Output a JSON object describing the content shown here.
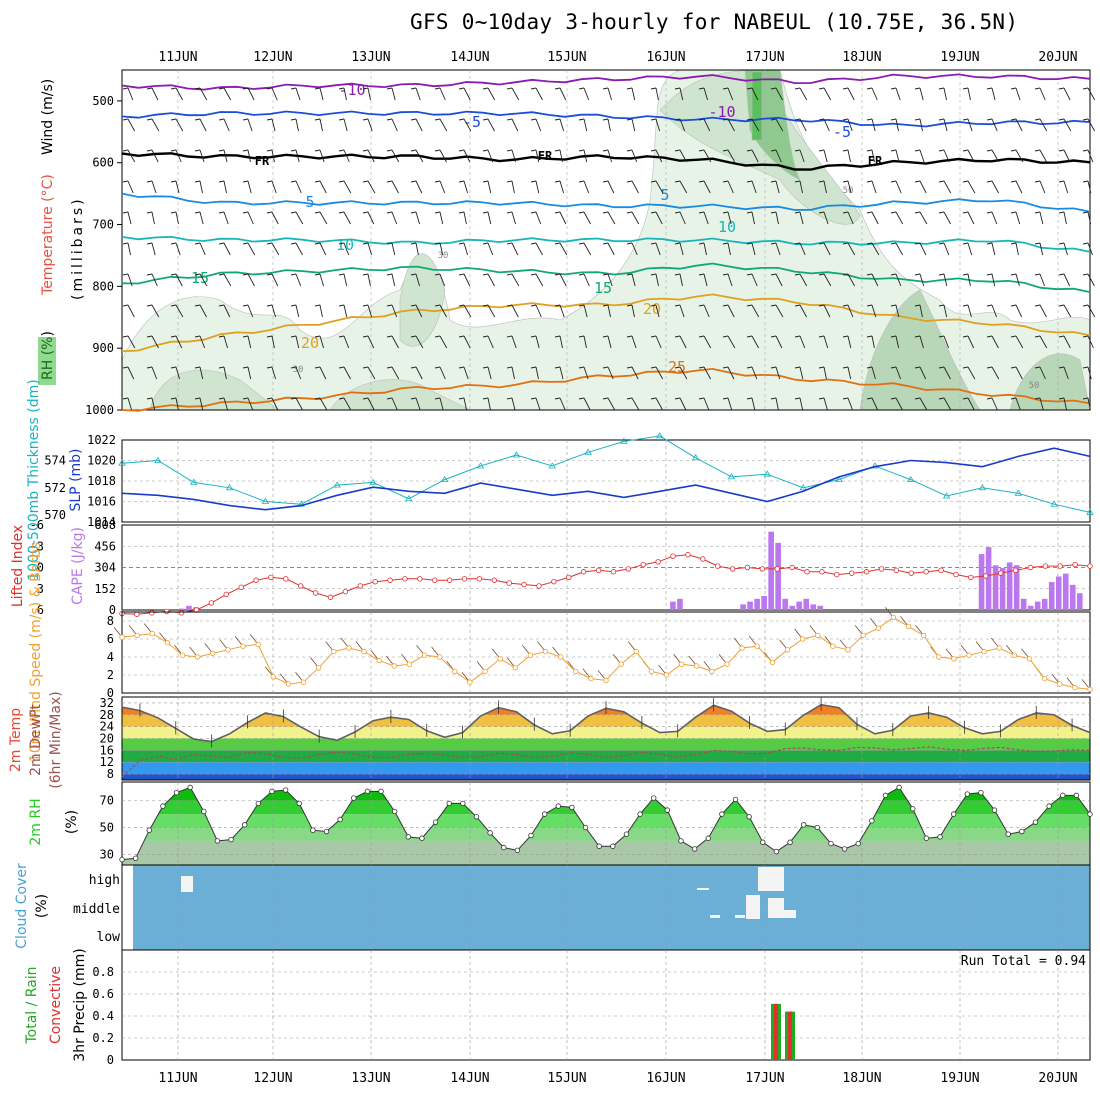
{
  "title": "GFS 0~10day 3-hourly for NABEUL (10.75E, 36.5N)",
  "colors": {
    "grid": "#999999",
    "slp": "#1a3bc8",
    "thick": "#19b3c0",
    "lifted": "#e03030",
    "cape": "#bb77ee",
    "wind10": "#f0a030",
    "temp": "#606060",
    "dew": "#a05050",
    "rh": "#22cc22",
    "cloud_bg": "#6baed6",
    "rain": "#22aa22",
    "conv": "#e03030"
  },
  "chart_data": [
    {
      "type": "heatmap",
      "panel": "upper-air",
      "ylabel_parts": [
        "RH (%)",
        "Temperature (°C)",
        "Wind (m/s)"
      ],
      "ylabel_axis": "(millibars)",
      "y_ticks": [
        500,
        600,
        700,
        800,
        900,
        1000
      ],
      "contour_labels": [
        "-10",
        "-10",
        "-5",
        "-5",
        "FR",
        "FR",
        "FR",
        "5",
        "5",
        "10",
        "10",
        "15",
        "15",
        "20",
        "20",
        "25",
        "30",
        "30",
        "50",
        "50"
      ],
      "isotherms": [
        {
          "label": "-10",
          "y": [
            475,
            480,
            475,
            475,
            470,
            465,
            460,
            470,
            460,
            460,
            465
          ]
        },
        {
          "label": "-5",
          "y": [
            525,
            520,
            520,
            520,
            520,
            525,
            530,
            530,
            540,
            535,
            535
          ]
        },
        {
          "label": "FR",
          "y": [
            585,
            590,
            590,
            590,
            595,
            590,
            595,
            610,
            600,
            595,
            600
          ]
        },
        {
          "label": "5",
          "y": [
            650,
            665,
            665,
            665,
            665,
            670,
            670,
            675,
            665,
            660,
            680
          ]
        },
        {
          "label": "10",
          "y": [
            720,
            725,
            725,
            730,
            725,
            725,
            725,
            730,
            730,
            725,
            745
          ]
        },
        {
          "label": "15",
          "y": [
            795,
            780,
            775,
            770,
            775,
            780,
            765,
            775,
            790,
            790,
            810
          ]
        },
        {
          "label": "20",
          "y": [
            905,
            880,
            860,
            840,
            830,
            830,
            815,
            825,
            850,
            860,
            880
          ]
        },
        {
          "label": "25",
          "y": [
            1000,
            990,
            980,
            965,
            960,
            945,
            935,
            950,
            960,
            975,
            990
          ]
        }
      ]
    },
    {
      "type": "line",
      "panel": "slp-thickness",
      "ylabel": "SLP (mb)",
      "ylabel2": "1000-500mb Thickness (dm)",
      "y_ticks": [
        1014,
        1016,
        1018,
        1020,
        1022
      ],
      "y2_ticks": [
        570,
        572,
        574
      ],
      "ylim": [
        1014,
        1022
      ],
      "series": [
        {
          "name": "SLP (mb)",
          "values": [
            1016.8,
            1016.6,
            1016.2,
            1015.6,
            1015.2,
            1015.6,
            1016.6,
            1017.4,
            1017.0,
            1016.8,
            1017.8,
            1017.2,
            1016.6,
            1017.0,
            1016.4,
            1017.0,
            1017.6,
            1016.8,
            1016.0,
            1017.0,
            1018.4,
            1019.4,
            1020.0,
            1019.8,
            1019.4,
            1020.4,
            1021.2,
            1020.4
          ]
        },
        {
          "name": "Thickness (dm)",
          "values": [
            573.8,
            574.0,
            572.4,
            572.0,
            571.0,
            570.8,
            572.2,
            572.4,
            571.2,
            572.6,
            573.6,
            574.4,
            573.6,
            574.6,
            575.4,
            575.8,
            574.2,
            572.8,
            573.0,
            572.0,
            572.6,
            573.6,
            572.6,
            571.4,
            572.0,
            571.6,
            570.8,
            570.2
          ]
        }
      ]
    },
    {
      "type": "bar",
      "panel": "cape-lifted",
      "ylabel": "CAPE (J/kg)",
      "ylabel2": "Lifted Index",
      "y_ticks": [
        0,
        152,
        304,
        456,
        608
      ],
      "y2_ticks": [
        6,
        3,
        0,
        -3,
        -6
      ],
      "cape": [
        0,
        0,
        0,
        0,
        0,
        0,
        0,
        0,
        10,
        30,
        20,
        0,
        0,
        0,
        0,
        0,
        0,
        0,
        0,
        0,
        0,
        0,
        0,
        0,
        0,
        0,
        0,
        0,
        0,
        0,
        0,
        0,
        0,
        0,
        0,
        0,
        0,
        0,
        0,
        0,
        0,
        0,
        0,
        0,
        0,
        0,
        0,
        0,
        0,
        0,
        0,
        0,
        0,
        0,
        0,
        0,
        0,
        0,
        0,
        0,
        0,
        0,
        0,
        0,
        0,
        0,
        0,
        0,
        0,
        0,
        0,
        0,
        0,
        0,
        0,
        0,
        0,
        0,
        60,
        80,
        0,
        0,
        0,
        0,
        0,
        0,
        0,
        0,
        40,
        60,
        80,
        100,
        560,
        480,
        80,
        30,
        60,
        80,
        40,
        30,
        0,
        0,
        0,
        0,
        0,
        0,
        0,
        0,
        0,
        0,
        0,
        0,
        0,
        0,
        0,
        0,
        0,
        0,
        0,
        0,
        0,
        0,
        400,
        450,
        320,
        300,
        340,
        320,
        80,
        30,
        60,
        80,
        200,
        240,
        260,
        180,
        120,
        0
      ],
      "lifted_index": [
        6.5,
        6.6,
        6.4,
        6.2,
        6.4,
        6.0,
        5.0,
        3.8,
        2.8,
        1.8,
        1.4,
        1.6,
        2.6,
        3.6,
        4.2,
        3.4,
        2.6,
        2.0,
        1.8,
        1.6,
        1.6,
        1.8,
        1.8,
        1.6,
        1.6,
        1.8,
        2.2,
        2.4,
        2.6,
        2.0,
        1.4,
        0.6,
        0.4,
        0.6,
        0.2,
        -0.4,
        -0.8,
        -1.6,
        -1.8,
        -1.2,
        -0.2,
        0.2,
        0.0,
        0.2,
        0.2,
        0.0,
        0.6,
        0.6,
        1.0,
        0.8,
        0.6,
        0.2,
        0.4,
        0.8,
        0.6,
        0.4,
        1.0,
        1.4,
        1.2,
        0.8,
        0.4,
        0.0,
        -0.2,
        -0.2,
        -0.4,
        -0.2
      ]
    },
    {
      "type": "line",
      "panel": "wind10m",
      "ylabel": "10m Wind Speed (m/s) & Barbs",
      "y_ticks": [
        0,
        2,
        4,
        6,
        8
      ],
      "ylim": [
        0,
        9
      ],
      "values": [
        6.2,
        6.4,
        6.6,
        5.6,
        4.2,
        4.0,
        4.4,
        4.8,
        5.2,
        5.4,
        1.8,
        1.0,
        1.2,
        2.8,
        4.6,
        5.0,
        4.6,
        3.6,
        3.0,
        3.2,
        4.2,
        4.0,
        2.4,
        1.2,
        2.4,
        3.8,
        2.8,
        4.2,
        4.6,
        4.0,
        2.4,
        1.6,
        1.4,
        3.2,
        4.6,
        2.4,
        2.0,
        3.2,
        3.0,
        2.4,
        3.2,
        5.0,
        5.2,
        3.4,
        4.8,
        6.0,
        6.4,
        5.2,
        4.8,
        6.4,
        7.2,
        8.4,
        7.4,
        6.4,
        4.0,
        3.8,
        4.2,
        4.6,
        5.0,
        4.2,
        3.8,
        1.6,
        1.0,
        0.6,
        0.4
      ]
    },
    {
      "type": "area",
      "panel": "temp2m",
      "ylabel": "2m Temp",
      "ylabel2": "2m DewPt",
      "ylabel3": "(6hr Min/Max)",
      "y_ticks": [
        8,
        12,
        16,
        20,
        24,
        28,
        32
      ],
      "ylim": [
        6,
        34
      ],
      "temp": [
        30.6,
        29.4,
        27.0,
        23.4,
        19.8,
        19.0,
        21.6,
        25.4,
        28.6,
        27.4,
        23.8,
        20.6,
        19.4,
        22.2,
        26.0,
        27.2,
        26.4,
        22.6,
        20.4,
        22.0,
        27.6,
        30.4,
        29.0,
        24.6,
        21.6,
        22.6,
        27.6,
        30.2,
        29.0,
        25.2,
        22.0,
        22.4,
        27.2,
        31.2,
        29.2,
        25.2,
        22.4,
        23.0,
        27.8,
        31.4,
        30.4,
        24.8,
        21.6,
        22.8,
        27.6,
        28.6,
        27.2,
        23.6,
        21.6,
        22.4,
        26.4,
        28.6,
        28.0,
        24.4,
        22.0
      ],
      "dewpoint": [
        7.0,
        12.6,
        14.0,
        13.0,
        14.6,
        14.0,
        13.6,
        15.4,
        14.8,
        13.6,
        13.4,
        14.6,
        15.4,
        14.8,
        13.6,
        13.6,
        14.6,
        15.0,
        14.4,
        13.6,
        13.8,
        15.0,
        14.6,
        13.6,
        14.0,
        15.2,
        14.6,
        13.6,
        14.2,
        15.4,
        14.6,
        13.8,
        14.6,
        16.0,
        15.6,
        14.8,
        15.0,
        16.6,
        16.8,
        16.2,
        16.0,
        17.0,
        16.8,
        16.2,
        16.6,
        17.2,
        16.4,
        16.0,
        16.6,
        17.0,
        16.2,
        15.6,
        15.8,
        16.2,
        16.0
      ]
    },
    {
      "type": "area",
      "panel": "rh2m",
      "ylabel": "2m RH (%)",
      "y_ticks": [
        30,
        50,
        70
      ],
      "ylim": [
        22,
        84
      ],
      "values": [
        26,
        27,
        48,
        66,
        76,
        80,
        62,
        40,
        41,
        52,
        68,
        77,
        78,
        68,
        48,
        47,
        56,
        72,
        77,
        77,
        62,
        43,
        42,
        54,
        68,
        68,
        58,
        46,
        35,
        33,
        44,
        60,
        66,
        65,
        50,
        36,
        36,
        45,
        60,
        72,
        63,
        40,
        34,
        42,
        60,
        71,
        58,
        39,
        32,
        39,
        52,
        50,
        38,
        34,
        38,
        55,
        74,
        80,
        64,
        42,
        43,
        60,
        75,
        76,
        63,
        45,
        47,
        54,
        66,
        74,
        74,
        60
      ]
    },
    {
      "type": "heatmap",
      "panel": "cloud-cover",
      "ylabel": "Cloud Cover (%)",
      "levels": [
        "high",
        "middle",
        "low"
      ]
    },
    {
      "type": "bar",
      "panel": "precip",
      "ylabel": "3hr Precip (mm)",
      "ylabel_total": "Total / Rain",
      "ylabel_conv": "Convective",
      "annotation": "Run Total = 0.94",
      "y_ticks": [
        0,
        0.2,
        0.4,
        0.6,
        0.8
      ],
      "ylim": [
        0,
        1.0
      ],
      "bars": [
        {
          "x": "17JUN 03",
          "value": 0.51
        },
        {
          "x": "17JUN 09",
          "value": 0.44
        }
      ]
    }
  ],
  "dates": [
    "11JUN",
    "12JUN",
    "13JUN",
    "14JUN",
    "15JUN",
    "16JUN",
    "17JUN",
    "18JUN",
    "19JUN",
    "20JUN"
  ]
}
